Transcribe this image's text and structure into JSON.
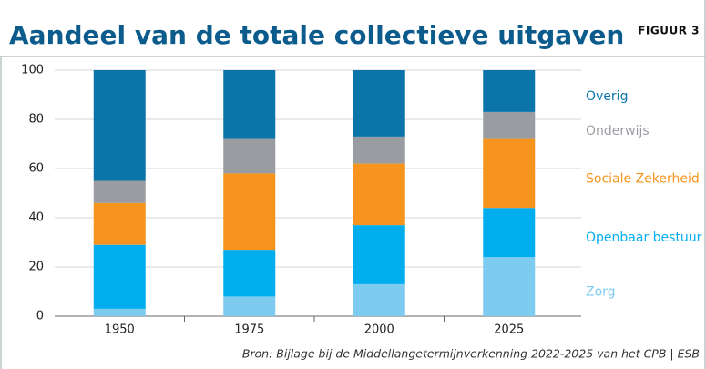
{
  "chart_data": {
    "type": "stacked_bar",
    "title": "Aandeel van de totale collectieve uitgaven",
    "figure_label": "FIGUUR 3",
    "source": "Bron: Bijlage bij de Middellangetermijnverkenning 2022-2025 van het CPB | ESB",
    "categories": [
      "1950",
      "1975",
      "2000",
      "2025"
    ],
    "series": [
      {
        "name": "Zorg",
        "color": "#7dcbef",
        "values": [
          3,
          8,
          13,
          24
        ]
      },
      {
        "name": "Openbaar bestuur",
        "color": "#00aeef",
        "values": [
          26,
          19,
          24,
          20
        ]
      },
      {
        "name": "Sociale Zekerheid",
        "color": "#f7941d",
        "values": [
          17,
          31,
          25,
          28
        ]
      },
      {
        "name": "Onderwijs",
        "color": "#999da2",
        "values": [
          9,
          14,
          11,
          11
        ]
      },
      {
        "name": "Overig",
        "color": "#0b74a8",
        "values": [
          45,
          28,
          27,
          17
        ]
      }
    ],
    "ylim": [
      0,
      100
    ],
    "yticks": [
      0,
      20,
      40,
      60,
      80,
      100
    ],
    "grid": true
  }
}
